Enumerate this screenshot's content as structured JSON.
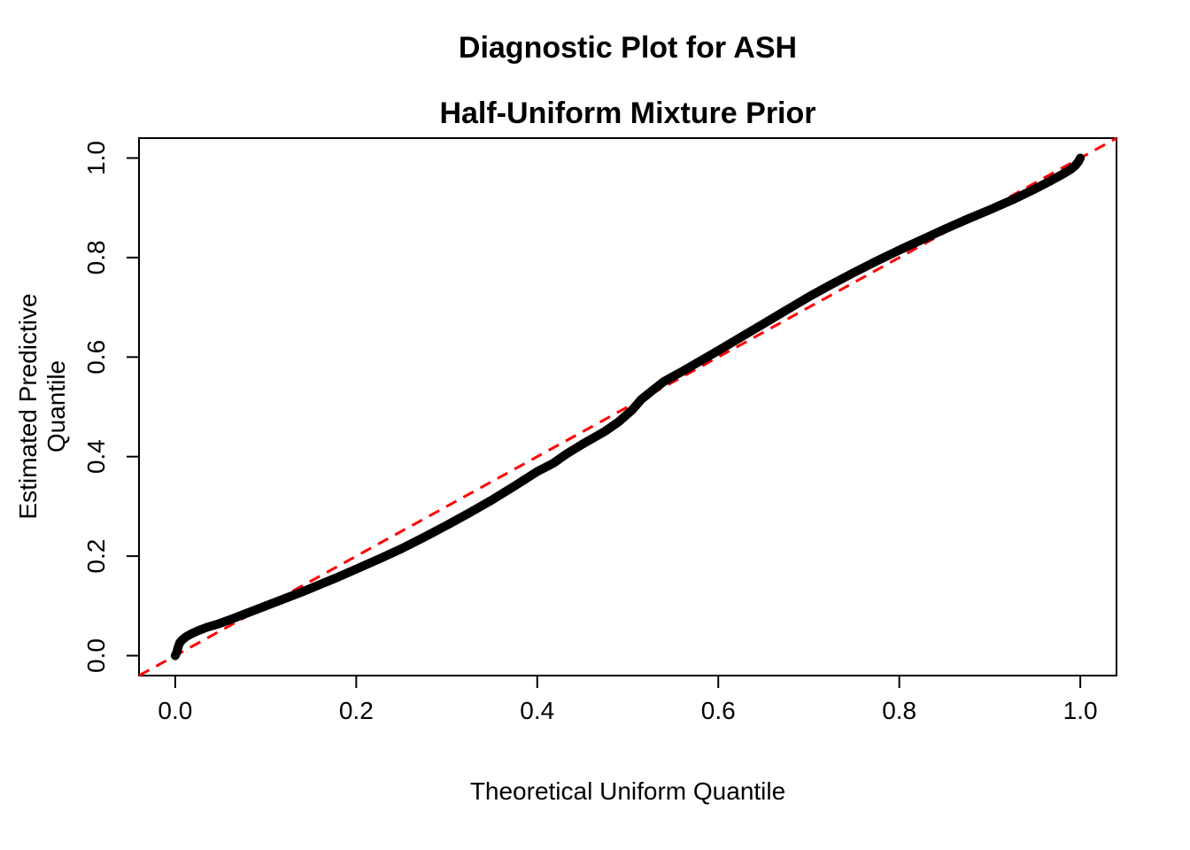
{
  "title": {
    "line1": "Diagnostic Plot for ASH",
    "line2": "Half-Uniform Mixture Prior"
  },
  "chart_data": {
    "type": "line",
    "title": "Diagnostic Plot for ASH\nHalf-Uniform Mixture Prior",
    "xlabel": "Theoretical Uniform Quantile",
    "ylabel": "Estimated Predictive Quantile",
    "xlim": [
      -0.04,
      1.04
    ],
    "ylim": [
      -0.04,
      1.04
    ],
    "usr": [
      -0.04,
      1.04,
      -0.04,
      1.04
    ],
    "grid": false,
    "legend": "none",
    "x_ticks": {
      "values": [
        0.0,
        0.2,
        0.4,
        0.6,
        0.8,
        1.0
      ],
      "labels": [
        "0.0",
        "0.2",
        "0.4",
        "0.6",
        "0.8",
        "1.0"
      ]
    },
    "y_ticks": {
      "values": [
        0.0,
        0.2,
        0.4,
        0.6,
        0.8,
        1.0
      ],
      "labels": [
        "0.0",
        "0.2",
        "0.4",
        "0.6",
        "0.8",
        "1.0"
      ]
    },
    "series": [
      {
        "name": "estimated-predictive-quantile-curve",
        "style": "solid",
        "color": "#000000",
        "stroke_width": 10,
        "points": [
          [
            0.0,
            0.0
          ],
          [
            0.002,
            0.008
          ],
          [
            0.003,
            0.016
          ],
          [
            0.005,
            0.026
          ],
          [
            0.008,
            0.032
          ],
          [
            0.012,
            0.038
          ],
          [
            0.018,
            0.044
          ],
          [
            0.025,
            0.05
          ],
          [
            0.035,
            0.057
          ],
          [
            0.048,
            0.064
          ],
          [
            0.06,
            0.072
          ],
          [
            0.08,
            0.086
          ],
          [
            0.1,
            0.1
          ],
          [
            0.12,
            0.114
          ],
          [
            0.14,
            0.128
          ],
          [
            0.16,
            0.143
          ],
          [
            0.18,
            0.158
          ],
          [
            0.2,
            0.174
          ],
          [
            0.225,
            0.194
          ],
          [
            0.25,
            0.215
          ],
          [
            0.275,
            0.238
          ],
          [
            0.3,
            0.262
          ],
          [
            0.325,
            0.287
          ],
          [
            0.35,
            0.313
          ],
          [
            0.375,
            0.341
          ],
          [
            0.4,
            0.37
          ],
          [
            0.418,
            0.387
          ],
          [
            0.432,
            0.405
          ],
          [
            0.45,
            0.425
          ],
          [
            0.475,
            0.451
          ],
          [
            0.49,
            0.47
          ],
          [
            0.505,
            0.494
          ],
          [
            0.515,
            0.515
          ],
          [
            0.528,
            0.534
          ],
          [
            0.54,
            0.551
          ],
          [
            0.56,
            0.571
          ],
          [
            0.58,
            0.592
          ],
          [
            0.6,
            0.613
          ],
          [
            0.625,
            0.64
          ],
          [
            0.65,
            0.667
          ],
          [
            0.675,
            0.694
          ],
          [
            0.7,
            0.721
          ],
          [
            0.725,
            0.746
          ],
          [
            0.75,
            0.77
          ],
          [
            0.775,
            0.793
          ],
          [
            0.8,
            0.815
          ],
          [
            0.825,
            0.836
          ],
          [
            0.85,
            0.857
          ],
          [
            0.875,
            0.877
          ],
          [
            0.9,
            0.896
          ],
          [
            0.925,
            0.916
          ],
          [
            0.95,
            0.938
          ],
          [
            0.968,
            0.955
          ],
          [
            0.982,
            0.969
          ],
          [
            0.99,
            0.978
          ],
          [
            0.995,
            0.986
          ],
          [
            0.998,
            0.993
          ],
          [
            1.0,
            1.0
          ]
        ]
      },
      {
        "name": "identity-reference-line",
        "style": "dashed",
        "color": "#FF0000",
        "stroke_width": 3,
        "dash": [
          13,
          9
        ],
        "points": [
          [
            -0.04,
            -0.04
          ],
          [
            1.04,
            1.04
          ]
        ]
      }
    ]
  },
  "colors": {
    "background": "#FFFFFF",
    "axis": "#000000",
    "curve": "#000000",
    "reference": "#FF0000"
  }
}
